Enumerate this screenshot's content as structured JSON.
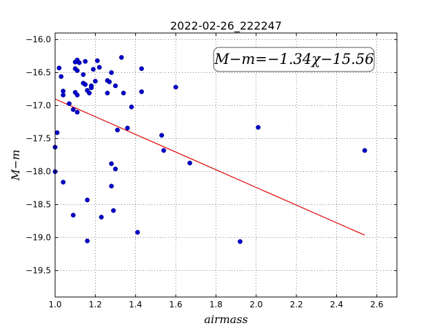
{
  "chart_data": {
    "type": "scatter",
    "title": "2022-02-26_222247",
    "xlabel": "airmass",
    "ylabel": "M−m",
    "xlim": [
      1.0,
      2.7
    ],
    "ylim": [
      -19.9,
      -15.9
    ],
    "y_inverted": true,
    "grid": true,
    "x_ticks": [
      1.0,
      1.2,
      1.4,
      1.6,
      1.8,
      2.0,
      2.2,
      2.4,
      2.6
    ],
    "x_tick_labels": [
      "1.0",
      "1.2",
      "1.4",
      "1.6",
      "1.8",
      "2.0",
      "2.2",
      "2.4",
      "2.6"
    ],
    "y_ticks": [
      -16.0,
      -16.5,
      -17.0,
      -17.5,
      -18.0,
      -18.5,
      -19.0,
      -19.5
    ],
    "y_tick_labels": [
      "−16.0",
      "−16.5",
      "−17.0",
      "−17.5",
      "−18.0",
      "−18.5",
      "−19.0",
      "−19.5"
    ],
    "annotation": "M−m=−1.34χ−15.56",
    "annotation_position": "top-right",
    "point_color": "#0000cc",
    "fit_color": "#dd0000",
    "fit": {
      "slope": -1.34,
      "intercept": -15.56,
      "x_range": [
        1.0,
        2.54
      ]
    },
    "points": [
      {
        "x": 1.0,
        "y": -17.63
      },
      {
        "x": 1.0,
        "y": -18.0
      },
      {
        "x": 1.01,
        "y": -17.41
      },
      {
        "x": 1.02,
        "y": -16.43
      },
      {
        "x": 1.03,
        "y": -16.56
      },
      {
        "x": 1.04,
        "y": -16.84
      },
      {
        "x": 1.04,
        "y": -16.78
      },
      {
        "x": 1.04,
        "y": -18.16
      },
      {
        "x": 1.07,
        "y": -16.97
      },
      {
        "x": 1.09,
        "y": -17.06
      },
      {
        "x": 1.09,
        "y": -18.66
      },
      {
        "x": 1.1,
        "y": -16.44
      },
      {
        "x": 1.1,
        "y": -16.34
      },
      {
        "x": 1.1,
        "y": -16.8
      },
      {
        "x": 1.11,
        "y": -16.31
      },
      {
        "x": 1.11,
        "y": -16.84
      },
      {
        "x": 1.11,
        "y": -16.47
      },
      {
        "x": 1.11,
        "y": -17.1
      },
      {
        "x": 1.12,
        "y": -16.35
      },
      {
        "x": 1.14,
        "y": -16.53
      },
      {
        "x": 1.14,
        "y": -16.66
      },
      {
        "x": 1.15,
        "y": -16.33
      },
      {
        "x": 1.15,
        "y": -16.68
      },
      {
        "x": 1.16,
        "y": -16.77
      },
      {
        "x": 1.16,
        "y": -18.43
      },
      {
        "x": 1.16,
        "y": -19.05
      },
      {
        "x": 1.17,
        "y": -16.81
      },
      {
        "x": 1.18,
        "y": -16.7
      },
      {
        "x": 1.18,
        "y": -16.73
      },
      {
        "x": 1.19,
        "y": -16.45
      },
      {
        "x": 1.2,
        "y": -16.63
      },
      {
        "x": 1.21,
        "y": -16.32
      },
      {
        "x": 1.22,
        "y": -16.42
      },
      {
        "x": 1.23,
        "y": -18.69
      },
      {
        "x": 1.26,
        "y": -16.62
      },
      {
        "x": 1.26,
        "y": -16.81
      },
      {
        "x": 1.27,
        "y": -16.64
      },
      {
        "x": 1.28,
        "y": -16.5
      },
      {
        "x": 1.28,
        "y": -17.88
      },
      {
        "x": 1.28,
        "y": -18.22
      },
      {
        "x": 1.29,
        "y": -18.59
      },
      {
        "x": 1.3,
        "y": -16.7
      },
      {
        "x": 1.3,
        "y": -17.96
      },
      {
        "x": 1.31,
        "y": -17.37
      },
      {
        "x": 1.33,
        "y": -16.27
      },
      {
        "x": 1.34,
        "y": -16.81
      },
      {
        "x": 1.36,
        "y": -17.34
      },
      {
        "x": 1.38,
        "y": -17.02
      },
      {
        "x": 1.41,
        "y": -18.92
      },
      {
        "x": 1.43,
        "y": -16.44
      },
      {
        "x": 1.43,
        "y": -16.79
      },
      {
        "x": 1.53,
        "y": -17.45
      },
      {
        "x": 1.54,
        "y": -17.68
      },
      {
        "x": 1.6,
        "y": -16.72
      },
      {
        "x": 1.67,
        "y": -17.87
      },
      {
        "x": 1.92,
        "y": -19.06
      },
      {
        "x": 2.01,
        "y": -17.33
      },
      {
        "x": 2.54,
        "y": -17.68
      }
    ]
  }
}
